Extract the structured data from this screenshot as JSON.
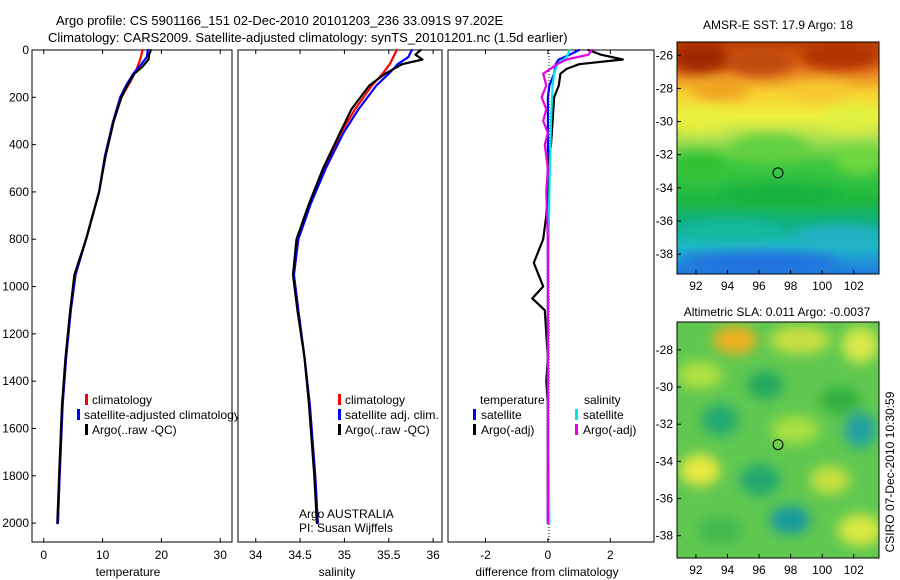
{
  "title_line1": "Argo profile: CS 5901166_151 02-Dec-2010 20101203_236 33.091S 97.202E",
  "title_line2": "Climatology: CARS2009. Satellite-adjusted climatology: synTS_20101201.nc (1.5d earlier)",
  "chart_data": [
    {
      "id": "temperature-panel",
      "type": "line",
      "xlabel": "temperature",
      "ylabel": "",
      "xlim": [
        -2,
        32
      ],
      "ylim": [
        2080,
        0
      ],
      "xticks": [
        0,
        10,
        20,
        30
      ],
      "yticks": [
        0,
        200,
        400,
        600,
        800,
        1000,
        1200,
        1400,
        1600,
        1800,
        2000
      ],
      "legend": [
        "climatology",
        "satellite-adjusted climatology",
        "Argo(..raw -QC)"
      ],
      "legend_position": "lower-right",
      "series": [
        {
          "name": "climatology",
          "color": "#ff0000",
          "depth": [
            0,
            40,
            80,
            130,
            200,
            300,
            450,
            600,
            800,
            950,
            1100,
            1300,
            1500,
            1800,
            2000
          ],
          "values": [
            16.8,
            16.4,
            15.8,
            14.8,
            13.2,
            11.8,
            10.4,
            9.4,
            7.2,
            5.4,
            4.6,
            3.8,
            3.2,
            2.7,
            2.4
          ]
        },
        {
          "name": "satellite-adjusted climatology",
          "color": "#0000ff",
          "depth": [
            0,
            30,
            60,
            100,
            150,
            200,
            300,
            450,
            600,
            800,
            950,
            1100,
            1300,
            1500,
            1800,
            2000
          ],
          "values": [
            17.7,
            17.5,
            16.6,
            15.2,
            14.0,
            13.0,
            11.8,
            10.4,
            9.4,
            7.2,
            5.4,
            4.6,
            3.8,
            3.2,
            2.7,
            2.4
          ]
        },
        {
          "name": "Argo(..raw -QC)",
          "color": "#000000",
          "depth": [
            0,
            20,
            40,
            70,
            100,
            150,
            200,
            300,
            450,
            600,
            800,
            950,
            1100,
            1300,
            1500,
            1800,
            2000
          ],
          "values": [
            18.2,
            17.9,
            17.8,
            16.8,
            15.4,
            14.2,
            13.2,
            11.9,
            10.5,
            9.4,
            7.2,
            5.2,
            4.5,
            3.7,
            3.1,
            2.6,
            2.3
          ]
        }
      ]
    },
    {
      "id": "salinity-panel",
      "type": "line",
      "xlabel": "salinity",
      "ylabel": "",
      "xlim": [
        33.8,
        36.1
      ],
      "ylim": [
        2080,
        0
      ],
      "xticks": [
        34,
        34.5,
        35,
        35.5,
        36
      ],
      "legend": [
        "climatology",
        "satellite adj. clim.",
        "Argo(..raw -QC)"
      ],
      "legend_position": "lower-right",
      "annotation": [
        "Argo AUSTRALIA",
        "PI: Susan Wijffels"
      ],
      "series": [
        {
          "name": "climatology",
          "color": "#ff0000",
          "depth": [
            0,
            60,
            100,
            150,
            250,
            350,
            500,
            650,
            800,
            950,
            1100,
            1300,
            1500,
            1800,
            2000
          ],
          "values": [
            35.59,
            35.51,
            35.43,
            35.31,
            35.12,
            34.96,
            34.78,
            34.62,
            34.48,
            34.43,
            34.48,
            34.55,
            34.61,
            34.67,
            34.7
          ]
        },
        {
          "name": "satellite adj. clim.",
          "color": "#0000ff",
          "depth": [
            0,
            30,
            60,
            100,
            150,
            250,
            350,
            500,
            650,
            800,
            950,
            1100,
            1300,
            1500,
            1800,
            2000
          ],
          "values": [
            35.76,
            35.72,
            35.6,
            35.5,
            35.36,
            35.16,
            34.99,
            34.79,
            34.62,
            34.48,
            34.43,
            34.48,
            34.55,
            34.61,
            34.67,
            34.7
          ]
        },
        {
          "name": "Argo(..raw -QC)",
          "color": "#000000",
          "depth": [
            0,
            20,
            40,
            60,
            100,
            150,
            250,
            350,
            500,
            650,
            800,
            950,
            1100,
            1300,
            1500,
            1800,
            2000
          ],
          "values": [
            35.86,
            35.8,
            35.88,
            35.65,
            35.46,
            35.28,
            35.08,
            34.95,
            34.76,
            34.6,
            34.46,
            34.42,
            34.47,
            34.55,
            34.6,
            34.66,
            34.69
          ]
        }
      ]
    },
    {
      "id": "difference-panel",
      "type": "line",
      "xlabel": "difference from climatology",
      "ylabel": "",
      "xlim": [
        -3.2,
        3.4
      ],
      "ylim": [
        2080,
        0
      ],
      "xticks": [
        -2,
        0,
        2
      ],
      "legend_temperature": {
        "title": "temperature",
        "items": [
          "satellite",
          "Argo(-adj)"
        ]
      },
      "legend_salinity": {
        "title": "salinity",
        "items": [
          "satellite",
          "Argo(-adj)"
        ]
      },
      "legend_position": "lower-center",
      "series": [
        {
          "name": "temperature satellite",
          "color": "#0000ff",
          "depth": [
            0,
            20,
            40,
            60,
            100,
            150,
            200,
            300,
            500,
            700,
            900,
            1100,
            1500,
            2000
          ],
          "values": [
            1.0,
            0.7,
            0.35,
            0.25,
            0.2,
            0.05,
            0.0,
            0.0,
            0.0,
            0.0,
            0.0,
            0.0,
            0.0,
            0.0
          ]
        },
        {
          "name": "temperature Argo(-adj)",
          "color": "#000000",
          "depth": [
            0,
            20,
            40,
            60,
            80,
            100,
            150,
            200,
            300,
            400,
            500,
            600,
            700,
            800,
            900,
            950,
            1000,
            1050,
            1100,
            1200,
            1300,
            1400,
            1500,
            1700,
            2000
          ],
          "values": [
            1.3,
            1.7,
            2.4,
            1.0,
            0.6,
            0.4,
            0.35,
            0.2,
            0.15,
            0.1,
            0.0,
            0.0,
            -0.05,
            -0.15,
            -0.45,
            -0.3,
            -0.15,
            -0.5,
            -0.1,
            -0.05,
            0.0,
            -0.05,
            0.0,
            0.0,
            0.0
          ]
        },
        {
          "name": "salinity satellite",
          "color": "#00e5e5",
          "depth": [
            0,
            30,
            60,
            100,
            150,
            300,
            600,
            1000,
            1500,
            2000
          ],
          "values": [
            0.7,
            0.6,
            0.3,
            0.2,
            0.15,
            0.1,
            0.05,
            0.0,
            0.0,
            0.05
          ]
        },
        {
          "name": "salinity Argo(-adj)",
          "color": "#e600e6",
          "depth": [
            0,
            20,
            40,
            60,
            100,
            150,
            200,
            250,
            300,
            350,
            400,
            500,
            600,
            800,
            1000,
            1300,
            1600,
            2000
          ],
          "values": [
            1.4,
            1.3,
            0.6,
            0.3,
            -0.15,
            -0.05,
            -0.2,
            -0.05,
            -0.15,
            0.0,
            -0.1,
            0.0,
            -0.05,
            0.0,
            0.0,
            0.0,
            0.0,
            0.0
          ]
        }
      ]
    },
    {
      "id": "sst-map",
      "type": "heatmap",
      "title": "AMSR-E SST: 17.9 Argo: 18",
      "xlim": [
        90.8,
        103.6
      ],
      "ylim": [
        -39.2,
        -25.2
      ],
      "xticks": [
        92,
        94,
        96,
        98,
        100,
        102
      ],
      "yticks": [
        -26,
        -28,
        -30,
        -32,
        -34,
        -36,
        -38
      ],
      "marker": {
        "label": "float location",
        "lon": 97.2,
        "lat": -33.1
      }
    },
    {
      "id": "sla-map",
      "type": "heatmap",
      "title": "Altimetric SLA: 0.011 Argo: -0.0037",
      "xlim": [
        90.8,
        103.6
      ],
      "ylim": [
        -39.2,
        -26.5
      ],
      "xticks": [
        92,
        94,
        96,
        98,
        100,
        102
      ],
      "yticks": [
        -28,
        -30,
        -32,
        -34,
        -36,
        -38
      ],
      "marker": {
        "label": "float location",
        "lon": 97.2,
        "lat": -33.1
      }
    }
  ],
  "side_label": "CSIRO 07-Dec-2010 10:30:59"
}
